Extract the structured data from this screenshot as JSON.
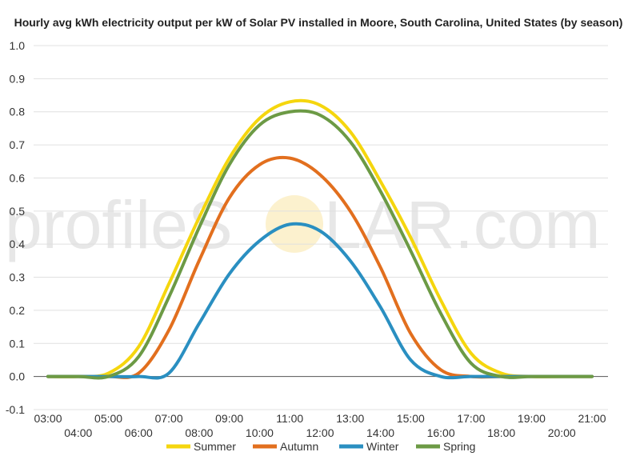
{
  "watermark": {
    "left": "profileS",
    "right": "LAR.com",
    "sun_color": "#f7d774"
  },
  "chart_data": {
    "type": "line",
    "title": "Hourly avg kWh electricity output per kW of Solar PV installed in Moore, South Carolina, United States (by season)",
    "xlabel": "",
    "ylabel": "",
    "x": [
      3,
      4,
      5,
      6,
      7,
      8,
      9,
      10,
      11,
      12,
      13,
      14,
      15,
      16,
      17,
      18,
      19,
      20,
      21
    ],
    "x_tick_labels": [
      "03:00",
      "04:00",
      "05:00",
      "06:00",
      "07:00",
      "08:00",
      "09:00",
      "10:00",
      "11:00",
      "12:00",
      "13:00",
      "14:00",
      "15:00",
      "16:00",
      "17:00",
      "18:00",
      "19:00",
      "20:00",
      "21:00"
    ],
    "ylim": [
      -0.1,
      1.0
    ],
    "y_ticks": [
      "-0.1",
      "0.0",
      "0.1",
      "0.2",
      "0.3",
      "0.4",
      "0.5",
      "0.6",
      "0.7",
      "0.8",
      "0.9",
      "1.0"
    ],
    "grid": true,
    "legend_position": "bottom",
    "series": [
      {
        "name": "Summer",
        "color": "#f5d60e",
        "values": [
          0.0,
          0.0,
          0.01,
          0.09,
          0.28,
          0.48,
          0.66,
          0.78,
          0.83,
          0.82,
          0.74,
          0.59,
          0.42,
          0.23,
          0.07,
          0.01,
          0.0,
          0.0,
          0.0
        ]
      },
      {
        "name": "Autumn",
        "color": "#e26f1e",
        "values": [
          0.0,
          0.0,
          0.0,
          0.01,
          0.14,
          0.35,
          0.54,
          0.64,
          0.66,
          0.61,
          0.5,
          0.33,
          0.13,
          0.02,
          0.0,
          0.0,
          0.0,
          0.0,
          0.0
        ]
      },
      {
        "name": "Winter",
        "color": "#2a8fc1",
        "values": [
          0.0,
          0.0,
          0.0,
          0.0,
          0.01,
          0.16,
          0.31,
          0.41,
          0.46,
          0.44,
          0.35,
          0.21,
          0.05,
          0.0,
          0.0,
          0.0,
          0.0,
          0.0,
          0.0
        ]
      },
      {
        "name": "Spring",
        "color": "#6c9a45",
        "values": [
          0.0,
          0.0,
          0.0,
          0.06,
          0.24,
          0.45,
          0.64,
          0.76,
          0.8,
          0.79,
          0.71,
          0.56,
          0.38,
          0.19,
          0.04,
          0.0,
          0.0,
          0.0,
          0.0
        ]
      }
    ]
  }
}
